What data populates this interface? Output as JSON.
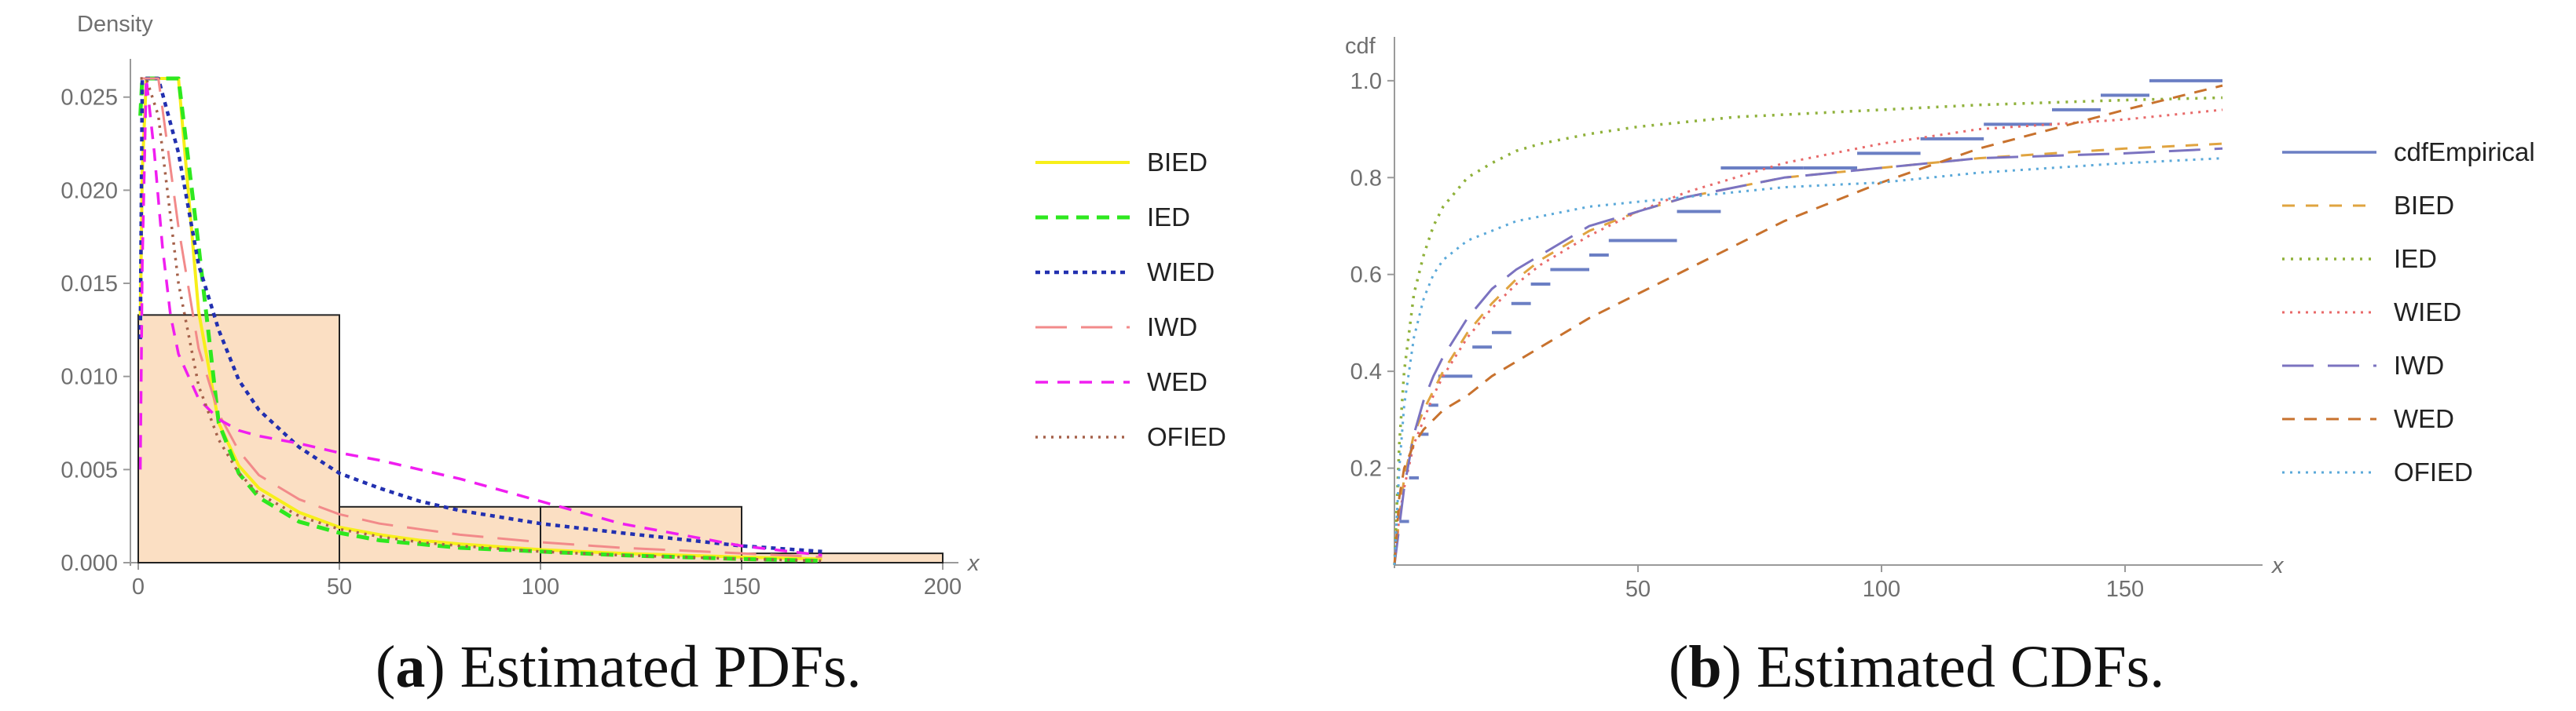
{
  "colors": {
    "axis": "#9a9a9a",
    "hist_fill": "#fbdfc3",
    "hist_edge": "#222222",
    "BIED": "#f7ef1a",
    "IED": "#2ee81f",
    "WIED": "#2230b0",
    "IWD": "#f28a8a",
    "WED": "#f01ef0",
    "OFIED": "#a5614a",
    "cdfEmpirical": "#6b7fc4",
    "BIED_cdf": "#e0a440",
    "IED_cdf": "#8fb13a",
    "WIED_cdf": "#e86a6a",
    "IWD_cdf": "#7b73c0",
    "WED_cdf": "#c8722e",
    "OFIED_cdf": "#5ba9d9"
  },
  "chart_data": [
    {
      "type": "line",
      "title": "",
      "xlabel": "x",
      "ylabel": "Density",
      "xlim": [
        0,
        200
      ],
      "ylim": [
        0,
        0.026
      ],
      "x_ticks": [
        0,
        50,
        100,
        150,
        200
      ],
      "x_tick_labels": [
        "0",
        "50",
        "100",
        "150",
        "200"
      ],
      "y_ticks": [
        0,
        0.005,
        0.01,
        0.015,
        0.02,
        0.025
      ],
      "y_tick_labels": [
        "0.000",
        "0.005",
        "0.010",
        "0.015",
        "0.020",
        "0.025"
      ],
      "histogram": [
        {
          "x0": 0,
          "x1": 50,
          "value": 0.0133
        },
        {
          "x0": 50,
          "x1": 100,
          "value": 0.003
        },
        {
          "x0": 100,
          "x1": 150,
          "value": 0.003
        },
        {
          "x0": 150,
          "x1": 200,
          "value": 0.0005
        }
      ],
      "series": [
        {
          "name": "BIED",
          "x": [
            0.5,
            1,
            2,
            5,
            10,
            15,
            20,
            25,
            30,
            40,
            50,
            60,
            70,
            80,
            100,
            120,
            150,
            170
          ],
          "values": [
            0.013,
            0.021,
            0.026,
            0.026,
            0.026,
            0.0135,
            0.0075,
            0.0052,
            0.004,
            0.0027,
            0.0019,
            0.0015,
            0.0012,
            0.001,
            0.0007,
            0.0005,
            0.0003,
            0.0002
          ]
        },
        {
          "name": "IED",
          "x": [
            0.5,
            1,
            2,
            5,
            10,
            15,
            20,
            25,
            30,
            40,
            50,
            60,
            70,
            80,
            100,
            120,
            150,
            170
          ],
          "values": [
            0.024,
            0.026,
            0.026,
            0.026,
            0.026,
            0.017,
            0.0075,
            0.0048,
            0.0035,
            0.0022,
            0.0016,
            0.0012,
            0.001,
            0.0008,
            0.0006,
            0.0004,
            0.0002,
            0.0001
          ]
        },
        {
          "name": "WIED",
          "x": [
            0.5,
            1,
            2,
            5,
            10,
            15,
            20,
            25,
            30,
            40,
            50,
            60,
            70,
            80,
            100,
            120,
            150,
            170
          ],
          "values": [
            0.012,
            0.026,
            0.026,
            0.026,
            0.022,
            0.016,
            0.0125,
            0.0098,
            0.0082,
            0.0062,
            0.0048,
            0.004,
            0.0033,
            0.0028,
            0.0021,
            0.0016,
            0.0009,
            0.0006
          ]
        },
        {
          "name": "IWD",
          "x": [
            0.5,
            1,
            2,
            5,
            10,
            15,
            20,
            25,
            30,
            40,
            50,
            60,
            70,
            80,
            100,
            120,
            150,
            170
          ],
          "values": [
            0.026,
            0.026,
            0.026,
            0.026,
            0.018,
            0.0115,
            0.008,
            0.006,
            0.0047,
            0.0034,
            0.0026,
            0.0021,
            0.0018,
            0.0015,
            0.0011,
            0.0008,
            0.0005,
            0.0003
          ]
        },
        {
          "name": "WED",
          "x": [
            0.5,
            1,
            2,
            4,
            6,
            8,
            10,
            15,
            20,
            25,
            30,
            40,
            50,
            60,
            80,
            100,
            120,
            150,
            170
          ],
          "values": [
            0.005,
            0.016,
            0.026,
            0.022,
            0.017,
            0.0133,
            0.0112,
            0.0088,
            0.0077,
            0.0071,
            0.0068,
            0.0064,
            0.0059,
            0.0055,
            0.0045,
            0.0033,
            0.0021,
            0.0009,
            0.0004
          ]
        },
        {
          "name": "OFIED",
          "x": [
            0.5,
            1,
            2,
            5,
            10,
            15,
            20,
            25,
            30,
            40,
            50,
            60,
            70,
            80,
            100,
            120,
            150,
            170
          ],
          "values": [
            0.026,
            0.026,
            0.026,
            0.024,
            0.015,
            0.0095,
            0.0066,
            0.0048,
            0.0037,
            0.0025,
            0.0018,
            0.0014,
            0.0011,
            0.0009,
            0.0006,
            0.0004,
            0.0002,
            0.0001
          ]
        }
      ],
      "legend": [
        "BIED",
        "IED",
        "WIED",
        "IWD",
        "WED",
        "OFIED"
      ]
    },
    {
      "type": "line",
      "title": "",
      "xlabel": "x",
      "ylabel": "cdf",
      "xlim": [
        0,
        175
      ],
      "ylim": [
        0,
        1.05
      ],
      "x_ticks": [
        50,
        100,
        150
      ],
      "x_tick_labels": [
        "50",
        "100",
        "150"
      ],
      "y_ticks": [
        0.2,
        0.4,
        0.6,
        0.8,
        1.0
      ],
      "y_tick_labels": [
        "0.2",
        "0.4",
        "0.6",
        "0.8",
        "1.0"
      ],
      "empirical_steps": [
        {
          "x0": 1,
          "x1": 3,
          "y": 0.09
        },
        {
          "x0": 3,
          "x1": 5,
          "y": 0.18
        },
        {
          "x0": 5,
          "x1": 7,
          "y": 0.27
        },
        {
          "x0": 7,
          "x1": 9,
          "y": 0.33
        },
        {
          "x0": 9,
          "x1": 16,
          "y": 0.39
        },
        {
          "x0": 16,
          "x1": 20,
          "y": 0.45
        },
        {
          "x0": 20,
          "x1": 24,
          "y": 0.48
        },
        {
          "x0": 24,
          "x1": 28,
          "y": 0.54
        },
        {
          "x0": 28,
          "x1": 32,
          "y": 0.58
        },
        {
          "x0": 32,
          "x1": 40,
          "y": 0.61
        },
        {
          "x0": 40,
          "x1": 44,
          "y": 0.64
        },
        {
          "x0": 44,
          "x1": 58,
          "y": 0.67
        },
        {
          "x0": 58,
          "x1": 67,
          "y": 0.73
        },
        {
          "x0": 67,
          "x1": 84,
          "y": 0.82
        },
        {
          "x0": 84,
          "x1": 95,
          "y": 0.82
        },
        {
          "x0": 95,
          "x1": 108,
          "y": 0.85
        },
        {
          "x0": 108,
          "x1": 121,
          "y": 0.88
        },
        {
          "x0": 121,
          "x1": 135,
          "y": 0.91
        },
        {
          "x0": 135,
          "x1": 145,
          "y": 0.94
        },
        {
          "x0": 145,
          "x1": 155,
          "y": 0.97
        },
        {
          "x0": 155,
          "x1": 170,
          "y": 1.0
        }
      ],
      "series": [
        {
          "name": "BIED",
          "x": [
            0,
            1,
            2,
            4,
            6,
            8,
            10,
            15,
            20,
            25,
            30,
            40,
            50,
            60,
            70,
            80,
            100,
            120,
            150,
            170
          ],
          "values": [
            0,
            0.1,
            0.18,
            0.27,
            0.32,
            0.36,
            0.4,
            0.48,
            0.54,
            0.59,
            0.63,
            0.69,
            0.73,
            0.76,
            0.78,
            0.8,
            0.82,
            0.84,
            0.86,
            0.87
          ]
        },
        {
          "name": "IED",
          "x": [
            0,
            1,
            2,
            4,
            6,
            8,
            10,
            15,
            20,
            25,
            30,
            40,
            50,
            60,
            70,
            80,
            100,
            120,
            150,
            170
          ],
          "values": [
            0,
            0.25,
            0.4,
            0.56,
            0.64,
            0.7,
            0.74,
            0.8,
            0.83,
            0.855,
            0.87,
            0.89,
            0.905,
            0.915,
            0.925,
            0.93,
            0.94,
            0.95,
            0.96,
            0.965
          ]
        },
        {
          "name": "WIED",
          "x": [
            0,
            1,
            2,
            4,
            6,
            8,
            10,
            15,
            20,
            25,
            30,
            40,
            50,
            60,
            70,
            80,
            100,
            120,
            150,
            170
          ],
          "values": [
            0,
            0.1,
            0.16,
            0.25,
            0.3,
            0.35,
            0.39,
            0.47,
            0.53,
            0.58,
            0.62,
            0.68,
            0.73,
            0.77,
            0.8,
            0.83,
            0.87,
            0.9,
            0.92,
            0.94
          ]
        },
        {
          "name": "IWD",
          "x": [
            0,
            1,
            2,
            4,
            6,
            8,
            10,
            15,
            20,
            25,
            30,
            40,
            50,
            60,
            70,
            80,
            100,
            120,
            150,
            170
          ],
          "values": [
            0,
            0.08,
            0.16,
            0.27,
            0.34,
            0.39,
            0.43,
            0.51,
            0.57,
            0.61,
            0.64,
            0.7,
            0.73,
            0.76,
            0.78,
            0.8,
            0.82,
            0.84,
            0.85,
            0.86
          ]
        },
        {
          "name": "WED",
          "x": [
            0,
            1,
            2,
            4,
            6,
            8,
            10,
            15,
            20,
            25,
            30,
            40,
            50,
            60,
            70,
            80,
            100,
            120,
            150,
            170
          ],
          "values": [
            0,
            0.14,
            0.2,
            0.25,
            0.28,
            0.3,
            0.32,
            0.35,
            0.39,
            0.42,
            0.45,
            0.51,
            0.56,
            0.61,
            0.66,
            0.71,
            0.79,
            0.86,
            0.94,
            0.99
          ]
        },
        {
          "name": "OFIED",
          "x": [
            0,
            1,
            2,
            4,
            6,
            8,
            10,
            15,
            20,
            25,
            30,
            40,
            50,
            60,
            70,
            80,
            100,
            120,
            150,
            170
          ],
          "values": [
            0,
            0.2,
            0.33,
            0.47,
            0.55,
            0.6,
            0.63,
            0.67,
            0.69,
            0.71,
            0.72,
            0.74,
            0.75,
            0.76,
            0.77,
            0.78,
            0.79,
            0.81,
            0.83,
            0.84
          ]
        }
      ],
      "legend": [
        "cdfEmpirical",
        "BIED",
        "IED",
        "WIED",
        "IWD",
        "WED",
        "OFIED"
      ]
    }
  ],
  "captions": {
    "a_label": "a",
    "a_text": " Estimated PDFs.",
    "b_label": "b",
    "b_text": " Estimated CDFs."
  }
}
